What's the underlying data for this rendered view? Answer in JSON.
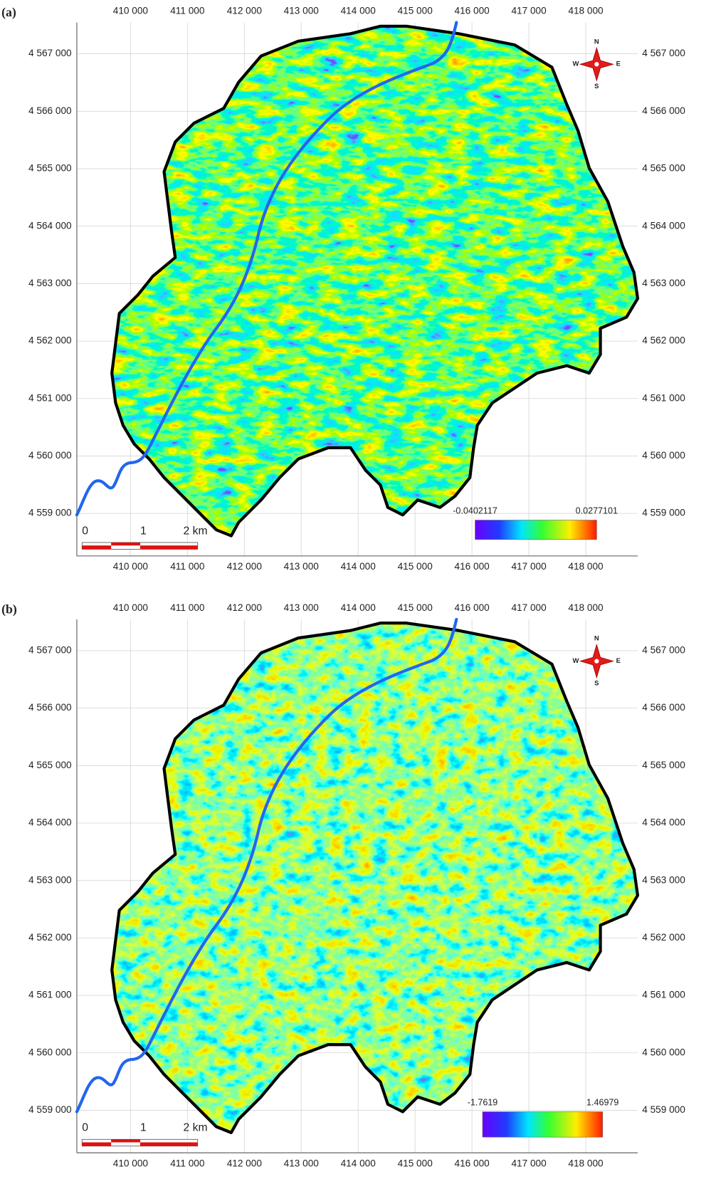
{
  "panels": [
    {
      "label": "(a)",
      "x_ticks": [
        "410 000",
        "411 000",
        "412 000",
        "413 000",
        "414 000",
        "415 000",
        "416 000",
        "417 000",
        "418 000"
      ],
      "y_ticks": [
        "4 567 000",
        "4 566 000",
        "4 565 000",
        "4 564 000",
        "4 563 000",
        "4 562 000",
        "4 561 000",
        "4 560 000",
        "4 559 000"
      ],
      "compass": {
        "n": "N",
        "w": "W",
        "e": "E",
        "s": "S"
      },
      "scale_bar": [
        "0",
        "1",
        "2 km"
      ],
      "legend": {
        "min": "-0.0402117",
        "max": "0.0277101"
      }
    },
    {
      "label": "(b)",
      "x_ticks": [
        "410 000",
        "411 000",
        "412 000",
        "413 000",
        "414 000",
        "415 000",
        "416 000",
        "417 000",
        "418 000"
      ],
      "y_ticks": [
        "4 567 000",
        "4 566 000",
        "4 565 000",
        "4 564 000",
        "4 563 000",
        "4 562 000",
        "4 561 000",
        "4 560 000",
        "4 559 000"
      ],
      "compass": {
        "n": "N",
        "w": "W",
        "e": "E",
        "s": "S"
      },
      "scale_bar": [
        "0",
        "1",
        "2 km"
      ],
      "legend": {
        "min": "-1.7619",
        "max": "1.46979"
      }
    }
  ]
}
